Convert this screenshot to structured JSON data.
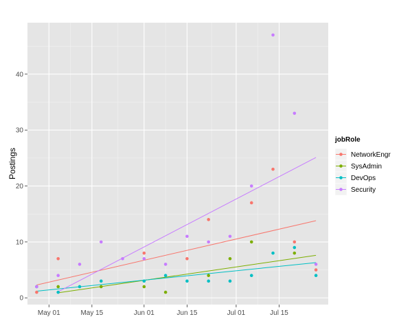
{
  "chart_data": {
    "type": "scatter",
    "title": "",
    "xlabel": "",
    "ylabel": "Postings",
    "x_type": "date",
    "xlim": [
      "2015-04-24",
      "2015-07-31"
    ],
    "ylim": [
      -1.2,
      49.2
    ],
    "x_ticks": [
      {
        "date": "2015-05-01",
        "label": "May 01"
      },
      {
        "date": "2015-05-15",
        "label": "May 15"
      },
      {
        "date": "2015-06-01",
        "label": "Jun 01"
      },
      {
        "date": "2015-06-15",
        "label": "Jun 15"
      },
      {
        "date": "2015-07-01",
        "label": "Jul 01"
      },
      {
        "date": "2015-07-15",
        "label": "Jul 15"
      }
    ],
    "y_ticks": [
      0,
      10,
      20,
      30,
      40
    ],
    "grid": true,
    "background": "#e5e5e5",
    "legend": {
      "title": "jobRole",
      "placement": "right"
    },
    "series": [
      {
        "name": "NetworkEngr",
        "color": "#f8766d",
        "points": [
          {
            "x": "2015-04-27",
            "y": 1
          },
          {
            "x": "2015-05-04",
            "y": 7
          },
          {
            "x": "2015-06-01",
            "y": 8
          },
          {
            "x": "2015-06-15",
            "y": 7
          },
          {
            "x": "2015-06-22",
            "y": 14
          },
          {
            "x": "2015-07-06",
            "y": 17
          },
          {
            "x": "2015-07-13",
            "y": 23
          },
          {
            "x": "2015-07-20",
            "y": 10
          },
          {
            "x": "2015-07-27",
            "y": 5
          }
        ],
        "trend": [
          {
            "x": "2015-04-27",
            "y": 2.3
          },
          {
            "x": "2015-07-27",
            "y": 13.8
          }
        ]
      },
      {
        "name": "SysAdmin",
        "color": "#7cae00",
        "points": [
          {
            "x": "2015-05-04",
            "y": 2
          },
          {
            "x": "2015-05-18",
            "y": 2
          },
          {
            "x": "2015-06-01",
            "y": 2
          },
          {
            "x": "2015-06-08",
            "y": 1
          },
          {
            "x": "2015-06-22",
            "y": 4
          },
          {
            "x": "2015-06-29",
            "y": 7
          },
          {
            "x": "2015-07-06",
            "y": 10
          },
          {
            "x": "2015-07-20",
            "y": 8
          }
        ],
        "trend": [
          {
            "x": "2015-05-04",
            "y": 0.9
          },
          {
            "x": "2015-07-27",
            "y": 7.6
          }
        ]
      },
      {
        "name": "DevOps",
        "color": "#00bfc4",
        "points": [
          {
            "x": "2015-04-27",
            "y": 2
          },
          {
            "x": "2015-05-04",
            "y": 1
          },
          {
            "x": "2015-05-11",
            "y": 2
          },
          {
            "x": "2015-05-18",
            "y": 3
          },
          {
            "x": "2015-06-01",
            "y": 3
          },
          {
            "x": "2015-06-08",
            "y": 4
          },
          {
            "x": "2015-06-15",
            "y": 3
          },
          {
            "x": "2015-06-22",
            "y": 3
          },
          {
            "x": "2015-06-29",
            "y": 3
          },
          {
            "x": "2015-07-06",
            "y": 4
          },
          {
            "x": "2015-07-13",
            "y": 8
          },
          {
            "x": "2015-07-20",
            "y": 9
          },
          {
            "x": "2015-07-27",
            "y": 4
          }
        ],
        "trend": [
          {
            "x": "2015-04-27",
            "y": 1.2
          },
          {
            "x": "2015-07-27",
            "y": 6.3
          }
        ]
      },
      {
        "name": "Security",
        "color": "#c77cff",
        "points": [
          {
            "x": "2015-04-27",
            "y": 2
          },
          {
            "x": "2015-05-04",
            "y": 4
          },
          {
            "x": "2015-05-11",
            "y": 6
          },
          {
            "x": "2015-05-18",
            "y": 10
          },
          {
            "x": "2015-05-25",
            "y": 7
          },
          {
            "x": "2015-06-01",
            "y": 7
          },
          {
            "x": "2015-06-08",
            "y": 6
          },
          {
            "x": "2015-06-15",
            "y": 11
          },
          {
            "x": "2015-06-22",
            "y": 10
          },
          {
            "x": "2015-06-29",
            "y": 11
          },
          {
            "x": "2015-07-06",
            "y": 20
          },
          {
            "x": "2015-07-13",
            "y": 47
          },
          {
            "x": "2015-07-20",
            "y": 33
          },
          {
            "x": "2015-07-27",
            "y": 6
          }
        ],
        "trend": [
          {
            "x": "2015-05-04",
            "y": 1.1
          },
          {
            "x": "2015-07-27",
            "y": 25.1
          }
        ]
      }
    ]
  }
}
